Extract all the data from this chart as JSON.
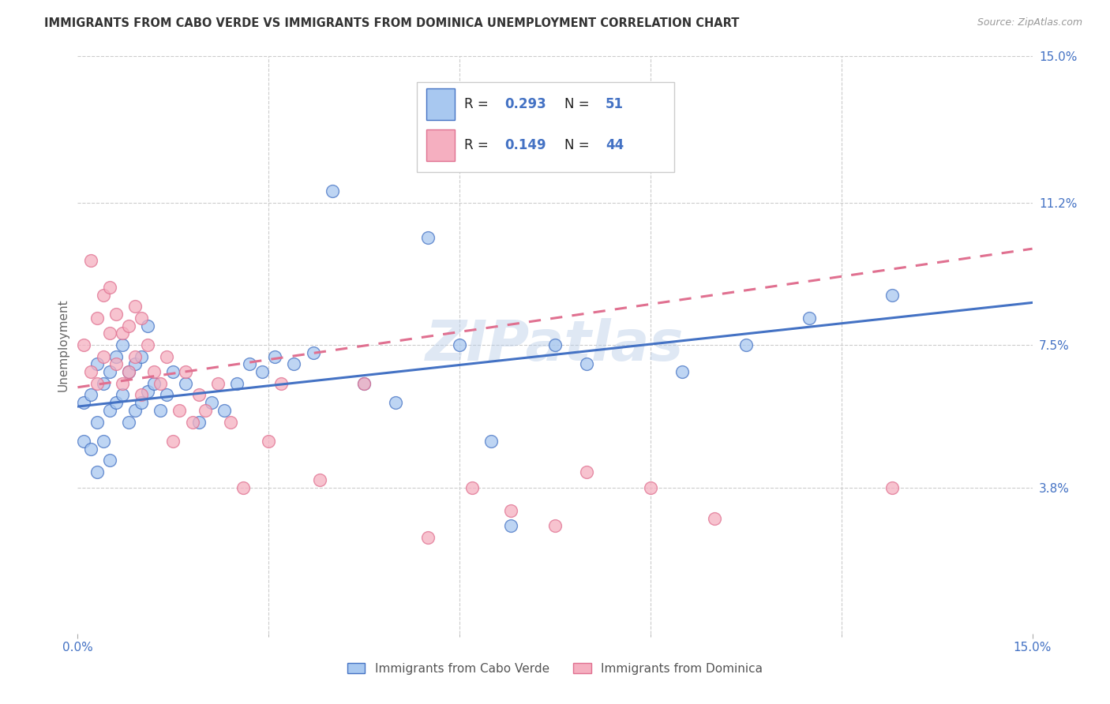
{
  "title": "IMMIGRANTS FROM CABO VERDE VS IMMIGRANTS FROM DOMINICA UNEMPLOYMENT CORRELATION CHART",
  "source": "Source: ZipAtlas.com",
  "ylabel": "Unemployment",
  "xlim": [
    0.0,
    0.15
  ],
  "ylim": [
    0.0,
    0.15
  ],
  "yticks_right": [
    0.038,
    0.075,
    0.112,
    0.15
  ],
  "ytick_labels_right": [
    "3.8%",
    "7.5%",
    "11.2%",
    "15.0%"
  ],
  "grid_color": "#cccccc",
  "background_color": "#ffffff",
  "cabo_verde_color": "#a8c8f0",
  "dominica_color": "#f5afc0",
  "cabo_verde_line_color": "#4472c4",
  "dominica_line_color": "#e07090",
  "cabo_verde_R": "0.293",
  "cabo_verde_N": "51",
  "dominica_R": "0.149",
  "dominica_N": "44",
  "legend_label_1": "Immigrants from Cabo Verde",
  "legend_label_2": "Immigrants from Dominica",
  "watermark": "ZIPatlas",
  "cv_line_x0": 0.0,
  "cv_line_y0": 0.059,
  "cv_line_x1": 0.15,
  "cv_line_y1": 0.086,
  "dom_line_x0": 0.0,
  "dom_line_y0": 0.064,
  "dom_line_x1": 0.15,
  "dom_line_y1": 0.1
}
